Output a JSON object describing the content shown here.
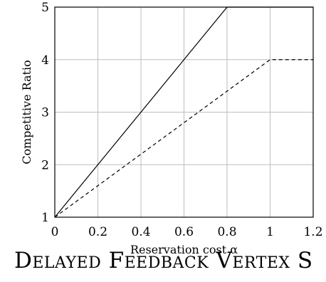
{
  "chart_data": {
    "type": "line",
    "title": "",
    "xlabel": "Reservation cost α",
    "ylabel": "Competitive Ratio",
    "xlim": [
      0,
      1.2
    ],
    "ylim": [
      1,
      5
    ],
    "xticks": [
      "0",
      "0.2",
      "0.4",
      "0.6",
      "0.8",
      "1",
      "1.2"
    ],
    "yticks": [
      "1",
      "2",
      "3",
      "4",
      "5"
    ],
    "grid": true,
    "series": [
      {
        "style": "solid",
        "x": [
          0,
          0.8,
          1.2
        ],
        "y": [
          1,
          5,
          5
        ]
      },
      {
        "style": "dashed",
        "x": [
          0,
          1.0,
          1.2
        ],
        "y": [
          1,
          4,
          4
        ]
      }
    ]
  },
  "caption": "Delayed Feedback Vertex S"
}
